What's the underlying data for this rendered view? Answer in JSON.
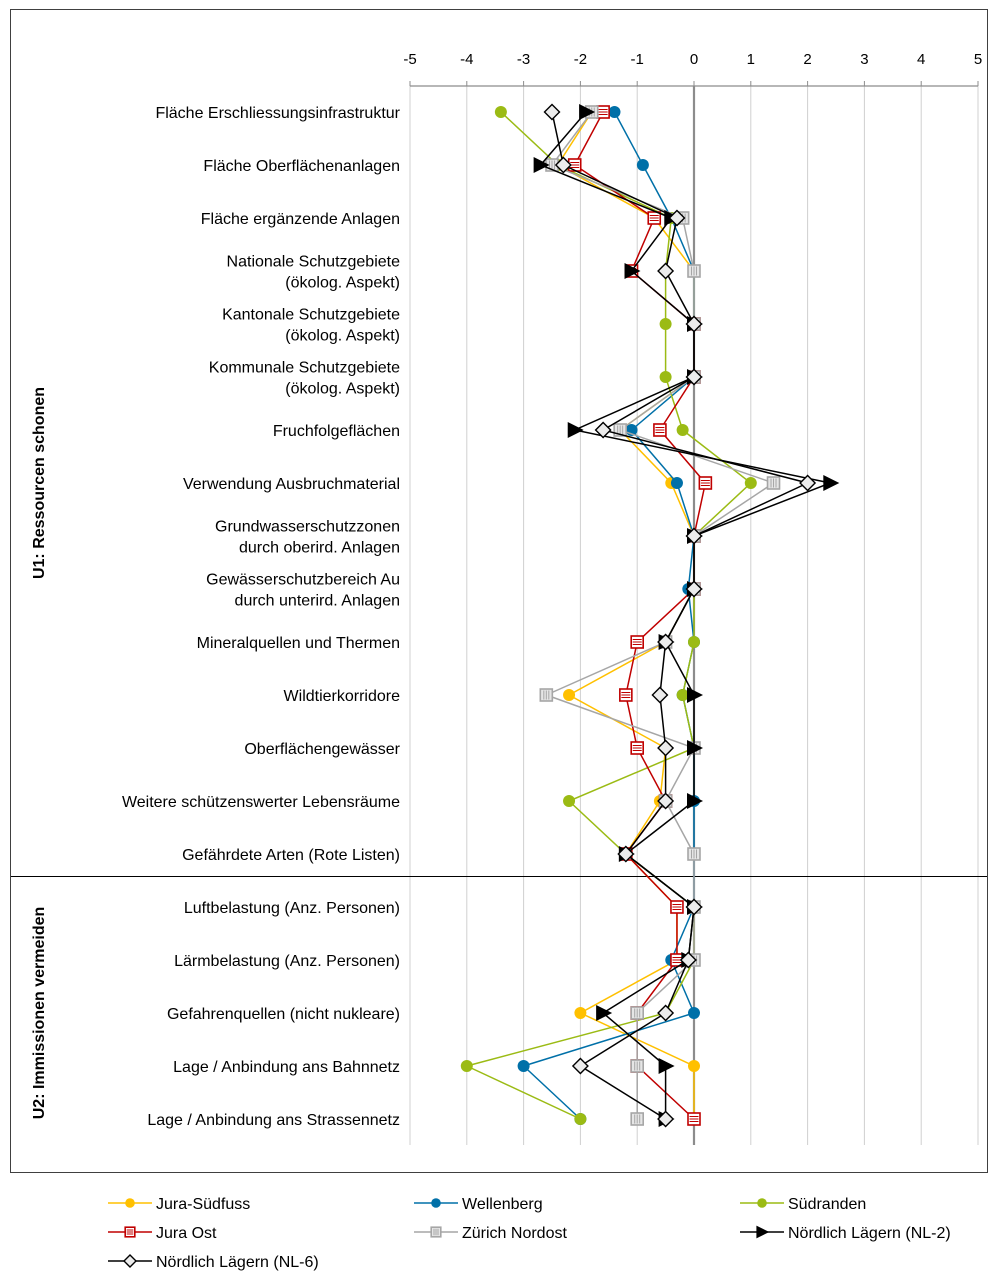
{
  "chart_data": {
    "type": "line",
    "orientation": "horizontal",
    "x_ticks": [
      "-5",
      "-4",
      "-3",
      "-2",
      "-1",
      "0",
      "1",
      "2",
      "3",
      "4",
      "5"
    ],
    "xlim": [
      -5,
      5
    ],
    "grid": "vertical",
    "legend_position": "bottom",
    "groups": [
      {
        "label": "U1: Ressourcen schonen",
        "from": 0,
        "to": 14
      },
      {
        "label": "U2: Immissionen vermeiden",
        "from": 15,
        "to": 19
      }
    ],
    "categories": [
      [
        "Fläche Erschliessungsinfrastruktur"
      ],
      [
        "Fläche Oberflächenanlagen"
      ],
      [
        "Fläche ergänzende Anlagen"
      ],
      [
        "Nationale Schutzgebiete",
        "(ökolog. Aspekt)"
      ],
      [
        "Kantonale Schutzgebiete",
        "(ökolog. Aspekt)"
      ],
      [
        "Kommunale Schutzgebiete",
        "(ökolog. Aspekt)"
      ],
      [
        "Fruchfolgeflächen"
      ],
      [
        "Verwendung  Ausbruchmaterial"
      ],
      [
        "Grundwasserschutzzonen",
        "durch oberird. Anlagen"
      ],
      [
        "Gewässerschutzbereich Au",
        "durch unterird. Anlagen"
      ],
      [
        "Mineralquellen und Thermen"
      ],
      [
        "Wildtierkorridore"
      ],
      [
        "Oberflächengewässer"
      ],
      [
        "Weitere schützenswerter Lebensräume"
      ],
      [
        "Gefährdete Arten (Rote Listen)"
      ],
      [
        "Luftbelastung (Anz. Personen)"
      ],
      [
        "Lärmbelastung (Anz. Personen)"
      ],
      [
        "Gefahrenquellen (nicht nukleare)"
      ],
      [
        "Lage / Anbindung ans Bahnnetz"
      ],
      [
        "Lage / Anbindung ans Strassennetz"
      ]
    ],
    "series": [
      {
        "name": "Jura-Südfuss",
        "color": "#FFC000",
        "marker": "circle",
        "values": [
          -1.8,
          -2.4,
          -0.7,
          0,
          0,
          0,
          -1.3,
          -0.4,
          0,
          0,
          -0.5,
          -2.2,
          -0.5,
          -0.6,
          -1.2,
          -0.3,
          -0.3,
          -2.0,
          0,
          0
        ]
      },
      {
        "name": "Wellenberg",
        "color": "#0070A8",
        "marker": "circle",
        "values": [
          -1.4,
          -0.9,
          -0.4,
          0,
          0,
          0,
          -1.1,
          -0.3,
          0,
          -0.1,
          0,
          -0.2,
          0,
          0,
          0,
          0,
          -0.4,
          0,
          -3.0,
          -2.0
        ]
      },
      {
        "name": "Südranden",
        "color": "#9BBB14",
        "marker": "circle",
        "values": [
          -3.4,
          -2.4,
          -0.4,
          -0.5,
          -0.5,
          -0.5,
          -0.2,
          1.0,
          0,
          0,
          0,
          -0.2,
          0,
          -2.2,
          -1.2,
          0,
          0,
          -0.5,
          -4.0,
          -2.0
        ]
      },
      {
        "name": "Jura Ost",
        "color": "#C00000",
        "marker": "square",
        "values": [
          -1.6,
          -2.1,
          -0.7,
          -1.1,
          0,
          0,
          -0.6,
          0.2,
          0,
          0,
          -1.0,
          -1.2,
          -1.0,
          -0.5,
          -1.2,
          -0.3,
          -0.3,
          -1.0,
          -1.0,
          0
        ]
      },
      {
        "name": "Zürich Nordost",
        "color": "#A6A6A6",
        "marker": "square",
        "values": [
          -1.8,
          -2.5,
          -0.2,
          0,
          0,
          0,
          -1.3,
          1.4,
          0,
          0,
          -0.5,
          -2.6,
          0,
          -0.5,
          0,
          0,
          0,
          -1.0,
          -1.0,
          -1.0
        ]
      },
      {
        "name": "Nördlich Lägern (NL-2)",
        "color": "#000000",
        "marker": "triangle",
        "values": [
          -1.9,
          -2.7,
          -0.4,
          -1.1,
          0,
          0,
          -2.1,
          2.4,
          0,
          0,
          -0.5,
          0,
          0,
          0,
          -1.2,
          0,
          -0.1,
          -1.6,
          -0.5,
          -0.5
        ]
      },
      {
        "name": "Nördlich Lägern (NL-6)",
        "color": "#000000",
        "marker": "diamond",
        "values": [
          -2.5,
          -2.3,
          -0.3,
          -0.5,
          0,
          0,
          -1.6,
          2.0,
          0,
          0,
          -0.5,
          -0.6,
          -0.5,
          -0.5,
          -1.2,
          0,
          -0.1,
          -0.5,
          -2.0,
          -0.5
        ]
      }
    ]
  }
}
